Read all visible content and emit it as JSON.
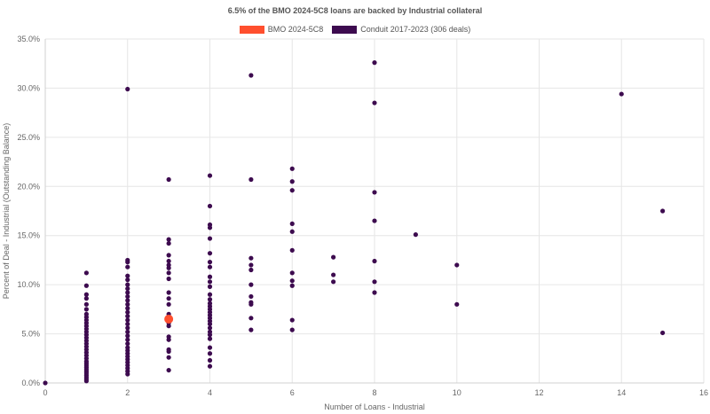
{
  "chart_data": {
    "type": "scatter",
    "title": "6.5% of the BMO 2024-5C8 loans are backed by Industrial collateral",
    "xlabel": "Number of Loans - Industrial",
    "ylabel": "Percent of Deal - Industrial (Outstanding Balance)",
    "xlim": [
      0,
      16
    ],
    "ylim": [
      0,
      35
    ],
    "x_ticks": [
      "0",
      "2",
      "4",
      "6",
      "8",
      "10",
      "12",
      "14",
      "16"
    ],
    "y_ticks": [
      "0.0%",
      "5.0%",
      "10.0%",
      "15.0%",
      "20.0%",
      "25.0%",
      "30.0%",
      "35.0%"
    ],
    "grid": true,
    "legend_position": "top",
    "series": [
      {
        "name": "BMO 2024-5C8",
        "color": "#ff4f2e",
        "points": [
          [
            3,
            6.5
          ]
        ]
      },
      {
        "name": "Conduit 2017-2023 (306 deals)",
        "color": "#3d0b4f",
        "points": [
          [
            0,
            0.0
          ],
          [
            1,
            0.2
          ],
          [
            1,
            0.4
          ],
          [
            1,
            0.6
          ],
          [
            1,
            0.8
          ],
          [
            1,
            1.0
          ],
          [
            1,
            1.2
          ],
          [
            1,
            1.4
          ],
          [
            1,
            1.6
          ],
          [
            1,
            1.8
          ],
          [
            1,
            2.0
          ],
          [
            1,
            2.2
          ],
          [
            1,
            2.5
          ],
          [
            1,
            2.8
          ],
          [
            1,
            3.1
          ],
          [
            1,
            3.4
          ],
          [
            1,
            3.7
          ],
          [
            1,
            4.0
          ],
          [
            1,
            4.3
          ],
          [
            1,
            4.6
          ],
          [
            1,
            4.9
          ],
          [
            1,
            5.2
          ],
          [
            1,
            5.5
          ],
          [
            1,
            5.8
          ],
          [
            1,
            6.1
          ],
          [
            1,
            6.4
          ],
          [
            1,
            6.7
          ],
          [
            1,
            7.0
          ],
          [
            1,
            7.5
          ],
          [
            1,
            8.0
          ],
          [
            1,
            8.6
          ],
          [
            1,
            9.0
          ],
          [
            1,
            9.9
          ],
          [
            1,
            11.2
          ],
          [
            2,
            0.9
          ],
          [
            2,
            1.2
          ],
          [
            2,
            1.5
          ],
          [
            2,
            1.8
          ],
          [
            2,
            2.1
          ],
          [
            2,
            2.4
          ],
          [
            2,
            2.7
          ],
          [
            2,
            3.0
          ],
          [
            2,
            3.3
          ],
          [
            2,
            3.6
          ],
          [
            2,
            4.0
          ],
          [
            2,
            4.4
          ],
          [
            2,
            4.8
          ],
          [
            2,
            5.2
          ],
          [
            2,
            5.6
          ],
          [
            2,
            6.0
          ],
          [
            2,
            6.4
          ],
          [
            2,
            6.8
          ],
          [
            2,
            7.2
          ],
          [
            2,
            7.6
          ],
          [
            2,
            8.0
          ],
          [
            2,
            8.4
          ],
          [
            2,
            8.8
          ],
          [
            2,
            9.2
          ],
          [
            2,
            9.6
          ],
          [
            2,
            10.0
          ],
          [
            2,
            10.5
          ],
          [
            2,
            10.9
          ],
          [
            2,
            11.8
          ],
          [
            2,
            12.3
          ],
          [
            2,
            12.5
          ],
          [
            2,
            29.9
          ],
          [
            3,
            1.3
          ],
          [
            3,
            2.6
          ],
          [
            3,
            3.2
          ],
          [
            3,
            3.4
          ],
          [
            3,
            4.4
          ],
          [
            3,
            4.7
          ],
          [
            3,
            5.8
          ],
          [
            3,
            6.1
          ],
          [
            3,
            7.0
          ],
          [
            3,
            8.0
          ],
          [
            3,
            8.6
          ],
          [
            3,
            9.2
          ],
          [
            3,
            10.6
          ],
          [
            3,
            11.2
          ],
          [
            3,
            11.7
          ],
          [
            3,
            12.0
          ],
          [
            3,
            12.4
          ],
          [
            3,
            13.0
          ],
          [
            3,
            14.2
          ],
          [
            3,
            14.6
          ],
          [
            3,
            20.7
          ],
          [
            4,
            1.7
          ],
          [
            4,
            2.3
          ],
          [
            4,
            3.0
          ],
          [
            4,
            3.6
          ],
          [
            4,
            4.5
          ],
          [
            4,
            4.9
          ],
          [
            4,
            5.2
          ],
          [
            4,
            5.6
          ],
          [
            4,
            6.0
          ],
          [
            4,
            6.3
          ],
          [
            4,
            6.6
          ],
          [
            4,
            6.9
          ],
          [
            4,
            7.2
          ],
          [
            4,
            7.5
          ],
          [
            4,
            7.8
          ],
          [
            4,
            8.1
          ],
          [
            4,
            8.5
          ],
          [
            4,
            9.0
          ],
          [
            4,
            9.8
          ],
          [
            4,
            10.3
          ],
          [
            4,
            10.8
          ],
          [
            4,
            11.8
          ],
          [
            4,
            12.3
          ],
          [
            4,
            13.2
          ],
          [
            4,
            14.7
          ],
          [
            4,
            15.8
          ],
          [
            4,
            16.1
          ],
          [
            4,
            18.0
          ],
          [
            4,
            21.1
          ],
          [
            5,
            5.4
          ],
          [
            5,
            6.6
          ],
          [
            5,
            8.0
          ],
          [
            5,
            8.2
          ],
          [
            5,
            8.8
          ],
          [
            5,
            10.0
          ],
          [
            5,
            11.5
          ],
          [
            5,
            12.0
          ],
          [
            5,
            12.7
          ],
          [
            5,
            20.7
          ],
          [
            5,
            31.3
          ],
          [
            6,
            5.4
          ],
          [
            6,
            6.4
          ],
          [
            6,
            9.9
          ],
          [
            6,
            10.4
          ],
          [
            6,
            11.2
          ],
          [
            6,
            13.5
          ],
          [
            6,
            15.4
          ],
          [
            6,
            16.2
          ],
          [
            6,
            19.6
          ],
          [
            6,
            20.5
          ],
          [
            6,
            21.8
          ],
          [
            7,
            10.3
          ],
          [
            7,
            11.0
          ],
          [
            7,
            12.8
          ],
          [
            8,
            9.2
          ],
          [
            8,
            10.3
          ],
          [
            8,
            12.4
          ],
          [
            8,
            16.5
          ],
          [
            8,
            19.4
          ],
          [
            8,
            28.5
          ],
          [
            8,
            32.6
          ],
          [
            9,
            15.1
          ],
          [
            10,
            8.0
          ],
          [
            10,
            12.0
          ],
          [
            14,
            29.4
          ],
          [
            15,
            5.1
          ],
          [
            15,
            17.5
          ]
        ]
      }
    ]
  }
}
